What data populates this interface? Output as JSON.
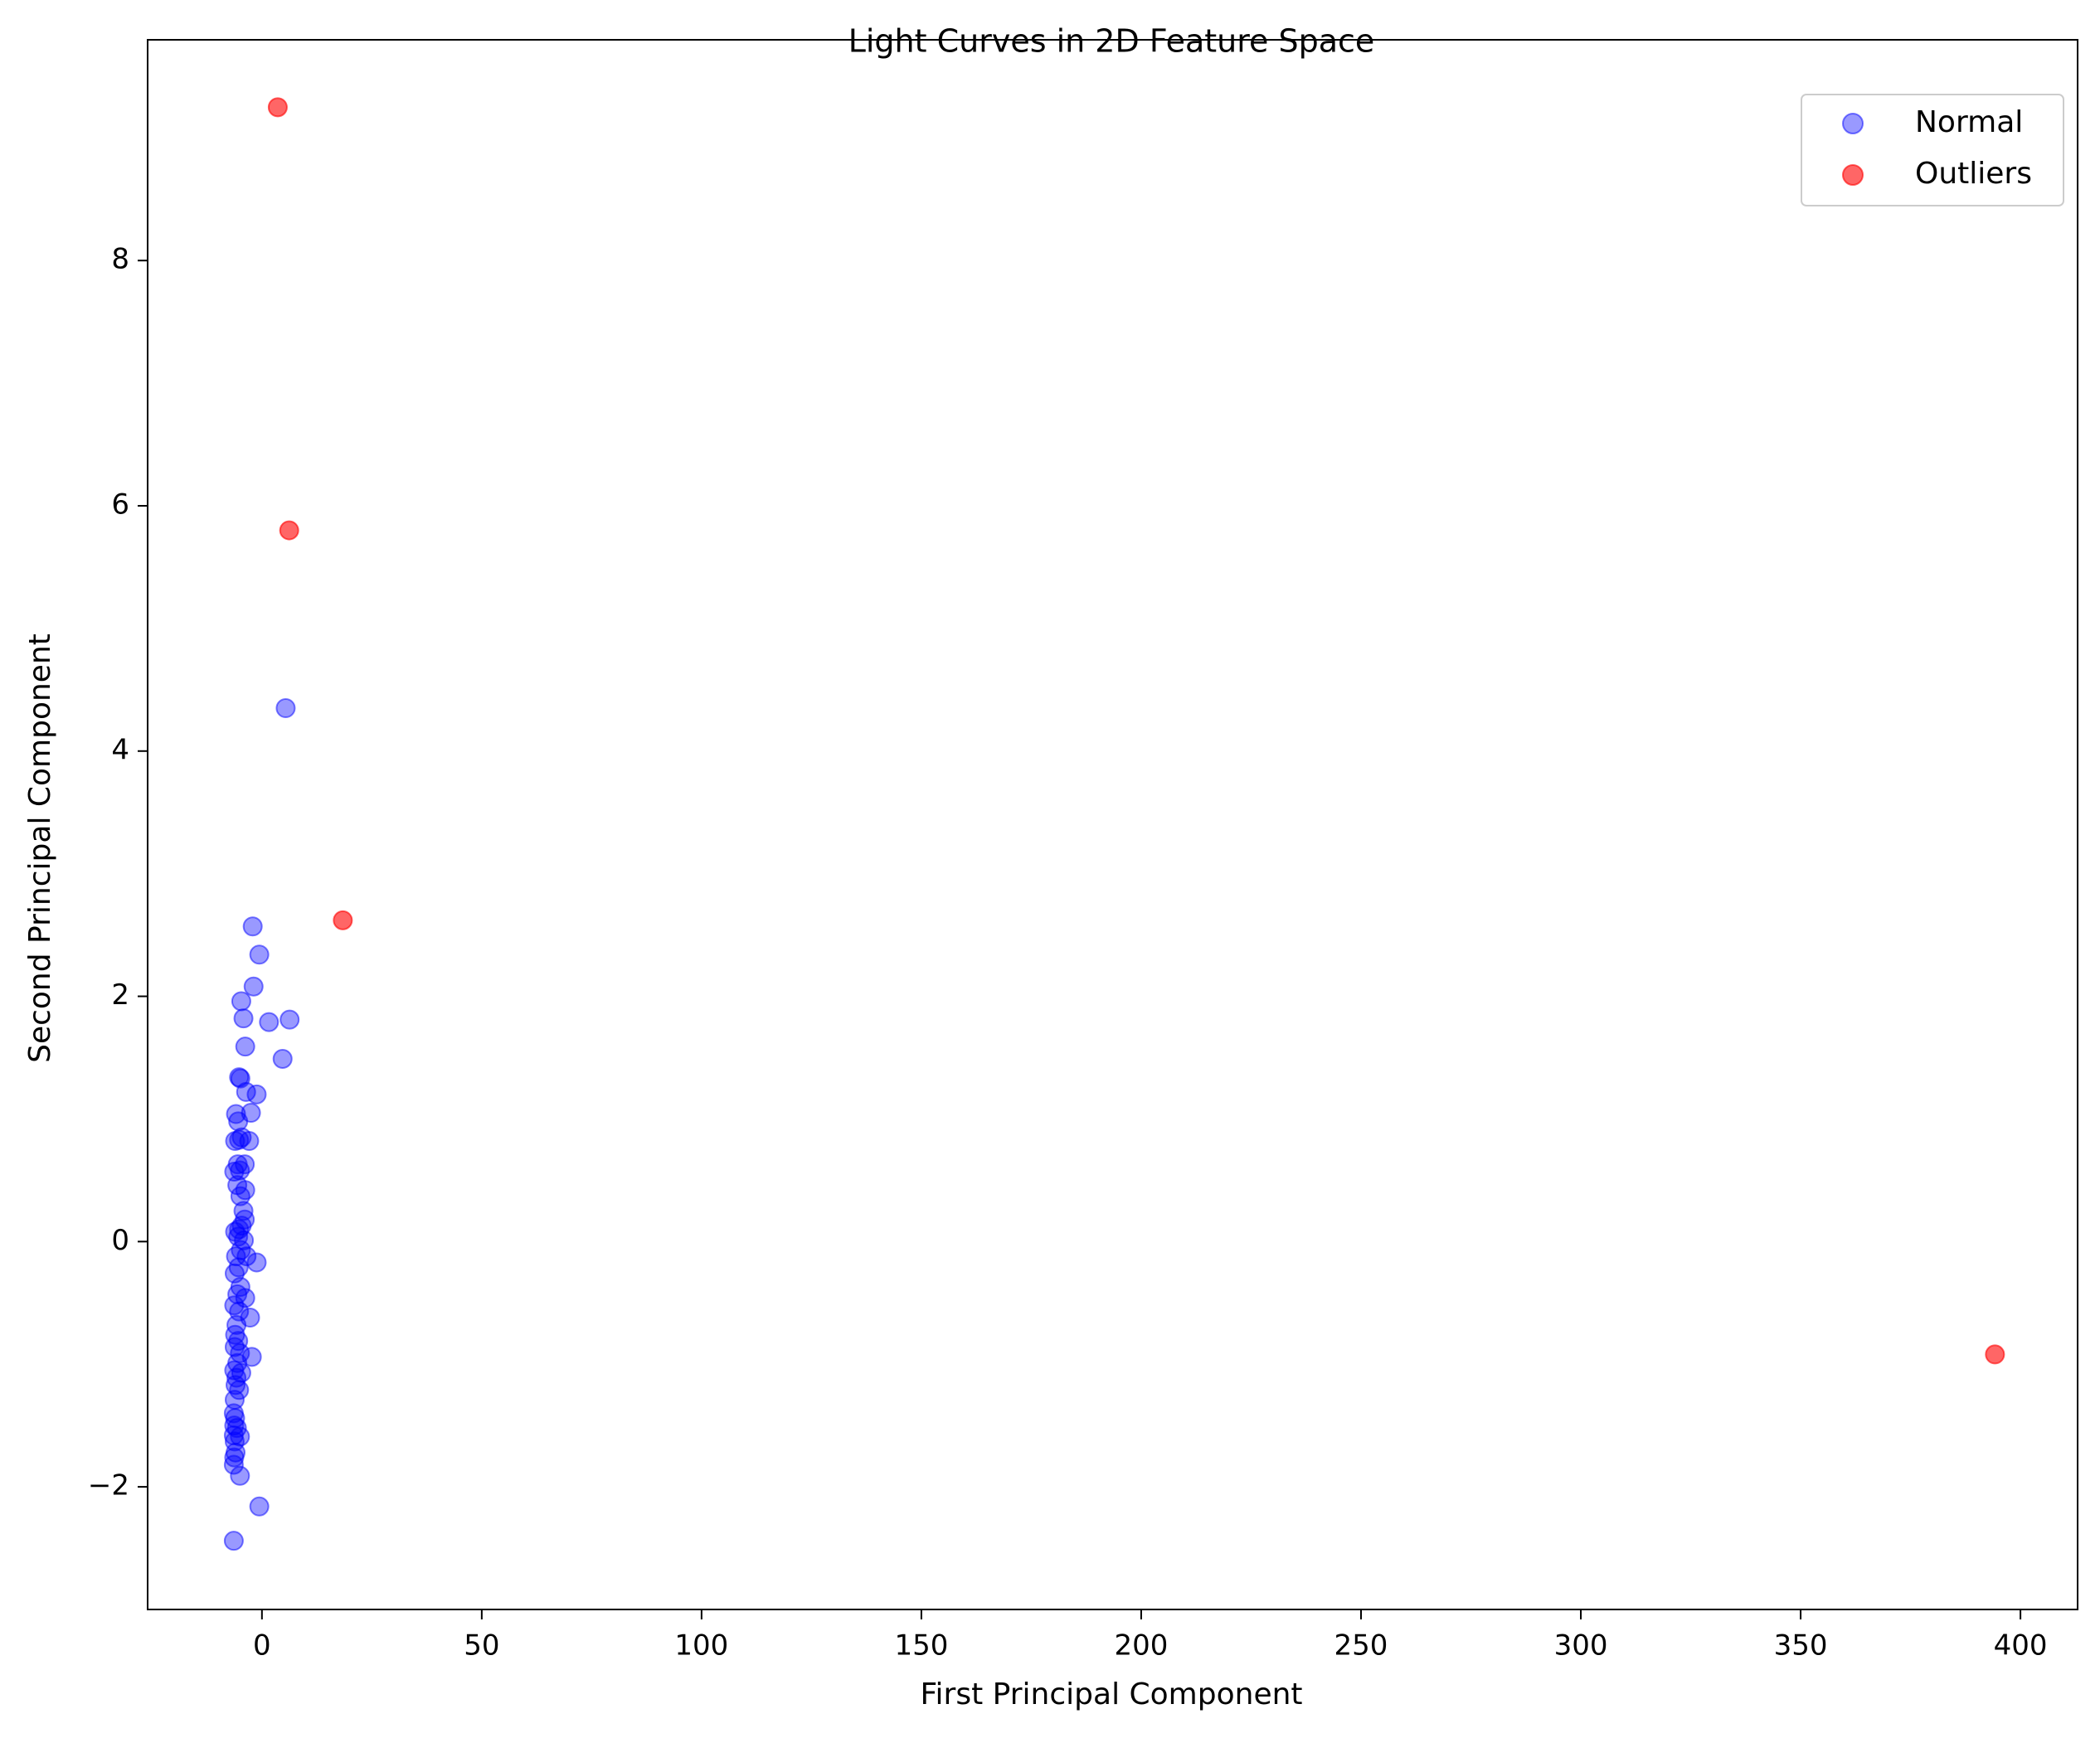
{
  "chart_data": {
    "type": "scatter",
    "title": "Light Curves in 2D Feature Space",
    "xlabel": "First Principal Component",
    "ylabel": "Second Principal Component",
    "xlim": [
      -26,
      413
    ],
    "ylim": [
      -3.0,
      9.8
    ],
    "xticks": [
      0,
      50,
      100,
      150,
      200,
      250,
      300,
      350,
      400
    ],
    "yticks": [
      -2,
      0,
      2,
      4,
      6,
      8
    ],
    "xtick_labels": [
      "0",
      "50",
      "100",
      "150",
      "200",
      "250",
      "300",
      "350",
      "400"
    ],
    "ytick_labels": [
      "−2",
      "0",
      "2",
      "4",
      "6",
      "8"
    ],
    "grid": false,
    "legend_position": "top-right",
    "series": [
      {
        "name": "Normal",
        "color": "#0000ff",
        "points": [
          [
            5.4,
            4.35
          ],
          [
            -2.1,
            2.57
          ],
          [
            -0.6,
            2.34
          ],
          [
            -1.9,
            2.08
          ],
          [
            -4.7,
            1.96
          ],
          [
            -4.2,
            1.82
          ],
          [
            1.6,
            1.79
          ],
          [
            6.3,
            1.81
          ],
          [
            -3.8,
            1.59
          ],
          [
            4.7,
            1.49
          ],
          [
            -5.2,
            1.34
          ],
          [
            -4.9,
            1.33
          ],
          [
            -3.6,
            1.22
          ],
          [
            -1.2,
            1.2
          ],
          [
            -5.9,
            1.04
          ],
          [
            -2.5,
            1.05
          ],
          [
            -5.4,
            0.98
          ],
          [
            -4.6,
            0.85
          ],
          [
            -6.1,
            0.82
          ],
          [
            -5.2,
            0.83
          ],
          [
            -2.9,
            0.82
          ],
          [
            -5.5,
            0.63
          ],
          [
            -3.9,
            0.63
          ],
          [
            -6.3,
            0.57
          ],
          [
            -5.0,
            0.58
          ],
          [
            -5.6,
            0.46
          ],
          [
            -3.8,
            0.42
          ],
          [
            -4.9,
            0.37
          ],
          [
            -4.2,
            0.25
          ],
          [
            -3.9,
            0.18
          ],
          [
            -4.6,
            0.13
          ],
          [
            -5.2,
            0.1
          ],
          [
            -6.1,
            0.08
          ],
          [
            -5.4,
            0.04
          ],
          [
            -4.1,
            0.01
          ],
          [
            -4.8,
            -0.07
          ],
          [
            -5.9,
            -0.12
          ],
          [
            -3.5,
            -0.12
          ],
          [
            -1.2,
            -0.17
          ],
          [
            -5.3,
            -0.21
          ],
          [
            -6.2,
            -0.26
          ],
          [
            -4.9,
            -0.37
          ],
          [
            -5.6,
            -0.43
          ],
          [
            -3.8,
            -0.46
          ],
          [
            -6.3,
            -0.52
          ],
          [
            -5.2,
            -0.57
          ],
          [
            -2.7,
            -0.62
          ],
          [
            -5.8,
            -0.68
          ],
          [
            -6.1,
            -0.76
          ],
          [
            -5.4,
            -0.81
          ],
          [
            -6.2,
            -0.86
          ],
          [
            -5.0,
            -0.91
          ],
          [
            -2.3,
            -0.94
          ],
          [
            -5.6,
            -0.99
          ],
          [
            -6.3,
            -1.05
          ],
          [
            -4.7,
            -1.07
          ],
          [
            -5.8,
            -1.11
          ],
          [
            -6.0,
            -1.17
          ],
          [
            -5.2,
            -1.21
          ],
          [
            -6.2,
            -1.29
          ],
          [
            -6.4,
            -1.4
          ],
          [
            -6.1,
            -1.44
          ],
          [
            -6.3,
            -1.5
          ],
          [
            -5.7,
            -1.52
          ],
          [
            -6.4,
            -1.58
          ],
          [
            -5.0,
            -1.59
          ],
          [
            -6.2,
            -1.63
          ],
          [
            -6.0,
            -1.72
          ],
          [
            -6.3,
            -1.76
          ],
          [
            -6.4,
            -1.82
          ],
          [
            -5.0,
            -1.91
          ],
          [
            -0.6,
            -2.16
          ],
          [
            -6.4,
            -2.44
          ]
        ]
      },
      {
        "name": "Outliers",
        "color": "#ff0000",
        "points": [
          [
            3.6,
            9.25
          ],
          [
            6.2,
            5.8
          ],
          [
            18.4,
            2.62
          ],
          [
            394.2,
            -0.92
          ]
        ]
      }
    ]
  }
}
